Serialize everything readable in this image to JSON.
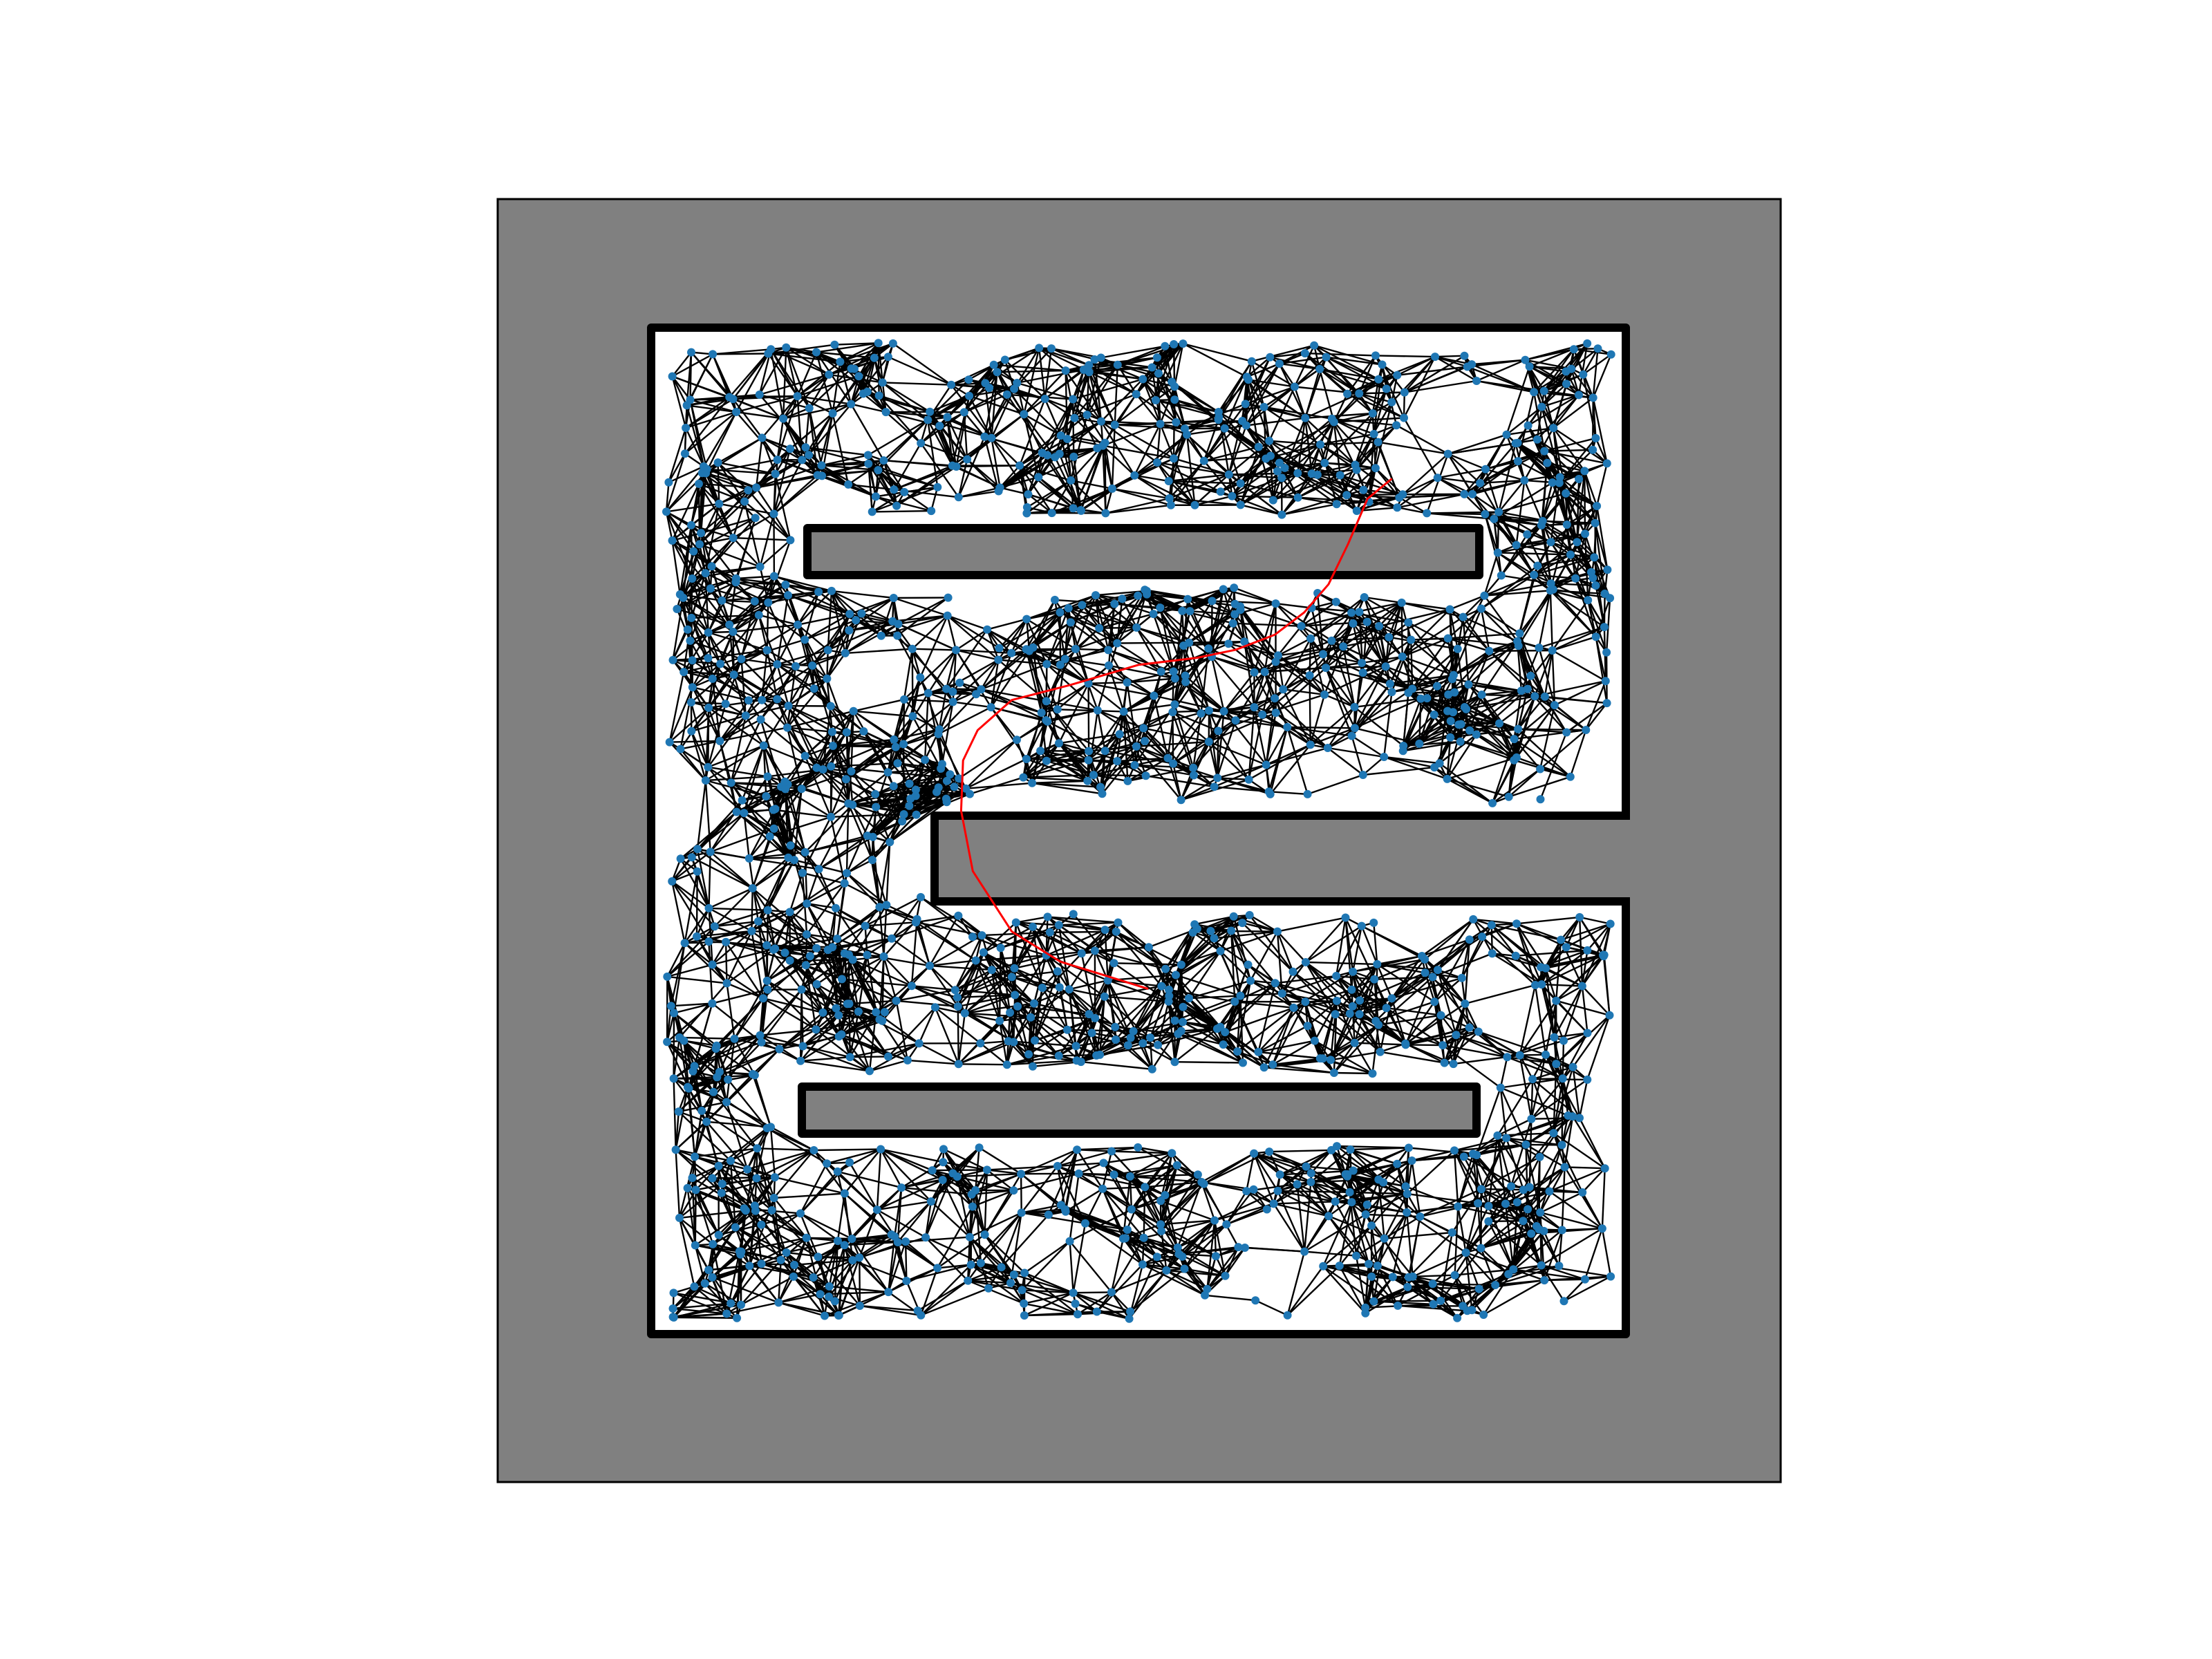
{
  "figure": {
    "background": "#ffffff",
    "obstacle_color": "#808080",
    "wall_color": "#000000",
    "node_color": "#1f77b4",
    "edge_color": "#000000",
    "path_color": "#ff0000"
  },
  "roadmap": {
    "node_count_shown": 1250,
    "connect_radius": 0.075,
    "seed": 7
  },
  "map": {
    "free_space": [
      {
        "id": "outer-border",
        "kind": "boundary"
      }
    ],
    "obstacles": [
      {
        "id": "top-bar",
        "kind": "inner-bar"
      },
      {
        "id": "middle-tongue",
        "kind": "wall-spur"
      },
      {
        "id": "bottom-bar",
        "kind": "inner-bar"
      }
    ]
  },
  "path": {
    "waypoints": [
      [
        0.51,
        0.657
      ],
      [
        0.47,
        0.645
      ],
      [
        0.42,
        0.63
      ],
      [
        0.37,
        0.6
      ],
      [
        0.33,
        0.54
      ],
      [
        0.318,
        0.48
      ],
      [
        0.32,
        0.43
      ],
      [
        0.335,
        0.4
      ],
      [
        0.37,
        0.37
      ],
      [
        0.43,
        0.355
      ],
      [
        0.5,
        0.335
      ],
      [
        0.56,
        0.328
      ],
      [
        0.6,
        0.32
      ],
      [
        0.64,
        0.305
      ],
      [
        0.67,
        0.283
      ],
      [
        0.695,
        0.255
      ],
      [
        0.715,
        0.215
      ],
      [
        0.735,
        0.17
      ],
      [
        0.76,
        0.15
      ]
    ]
  }
}
